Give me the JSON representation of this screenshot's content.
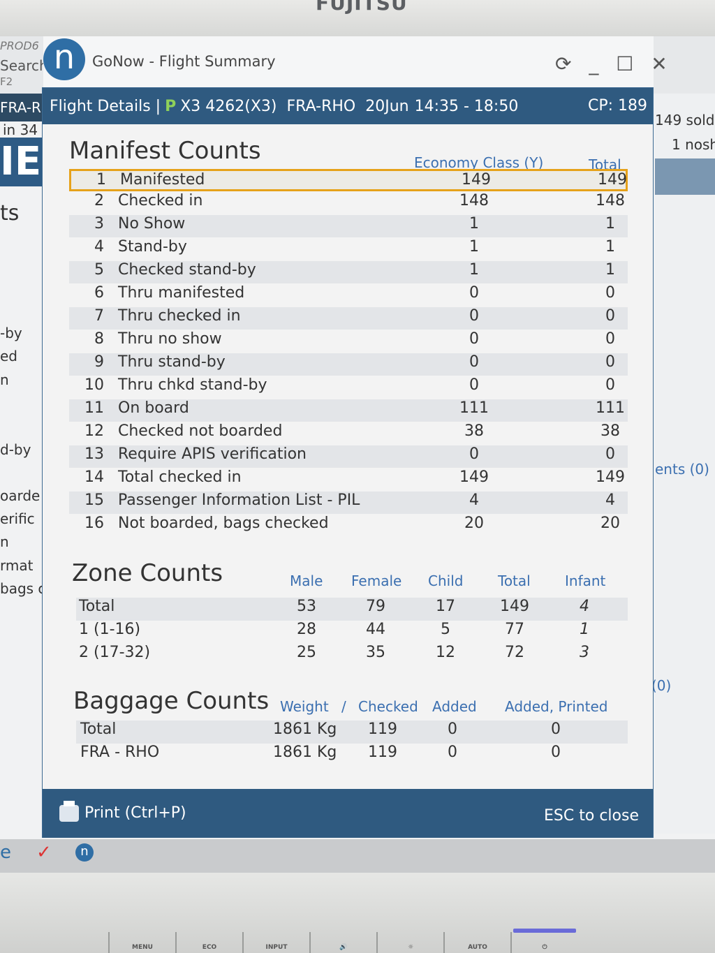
{
  "monitor": {
    "brand": "FUJITSU",
    "osd_buttons": [
      "MENU",
      "ECO",
      "INPUT",
      "🔊",
      "☼",
      "AUTO",
      "⏻"
    ]
  },
  "background_app": {
    "env": "PROD6",
    "search": "Search",
    "f2": "F2",
    "route": "FRA-R",
    "in_count": "in 34",
    "big_letters": "IE",
    "ts": "ts",
    "left_labels": [
      "-by",
      "ed",
      "n",
      "d-by",
      "oarde",
      "erific",
      "n",
      "rmat",
      "bags c"
    ],
    "right_sold": "149 sold",
    "right_nosh": "1 nosh",
    "right_ents": "ents (0)",
    "right_zero": "(0)"
  },
  "window": {
    "logo": "n",
    "title": "GoNow - Flight Summary",
    "controls": "⟳ _ ☐ ✕"
  },
  "dialog": {
    "header": {
      "prefix": "Flight Details |",
      "badge": "P",
      "flight": "X3 4262(X3)",
      "route": "FRA-RHO",
      "date": "20Jun",
      "times": "14:35 - 18:50",
      "cp": "CP: 189"
    },
    "manifest": {
      "title": "Manifest Counts",
      "col_economy": "Economy Class (Y)",
      "col_total": "Total",
      "rows": [
        {
          "num": "1",
          "label": "Manifested",
          "economy": "149",
          "total": "149"
        },
        {
          "num": "2",
          "label": "Checked in",
          "economy": "148",
          "total": "148"
        },
        {
          "num": "3",
          "label": "No Show",
          "economy": "1",
          "total": "1"
        },
        {
          "num": "4",
          "label": "Stand-by",
          "economy": "1",
          "total": "1"
        },
        {
          "num": "5",
          "label": "Checked stand-by",
          "economy": "1",
          "total": "1"
        },
        {
          "num": "6",
          "label": "Thru manifested",
          "economy": "0",
          "total": "0"
        },
        {
          "num": "7",
          "label": "Thru checked in",
          "economy": "0",
          "total": "0"
        },
        {
          "num": "8",
          "label": "Thru no show",
          "economy": "0",
          "total": "0"
        },
        {
          "num": "9",
          "label": "Thru stand-by",
          "economy": "0",
          "total": "0"
        },
        {
          "num": "10",
          "label": "Thru chkd stand-by",
          "economy": "0",
          "total": "0"
        },
        {
          "num": "11",
          "label": "On board",
          "economy": "111",
          "total": "111"
        },
        {
          "num": "12",
          "label": "Checked not boarded",
          "economy": "38",
          "total": "38"
        },
        {
          "num": "13",
          "label": "Require APIS verification",
          "economy": "0",
          "total": "0"
        },
        {
          "num": "14",
          "label": "Total checked in",
          "economy": "149",
          "total": "149"
        },
        {
          "num": "15",
          "label": "Passenger Information List - PIL",
          "economy": "4",
          "total": "4"
        },
        {
          "num": "16",
          "label": "Not boarded, bags checked",
          "economy": "20",
          "total": "20"
        }
      ]
    },
    "zones": {
      "title": "Zone Counts",
      "headers": [
        "Male",
        "Female",
        "Child",
        "Total",
        "Infant"
      ],
      "rows": [
        {
          "label": "Total",
          "male": "53",
          "female": "79",
          "child": "17",
          "total": "149",
          "infant": "4"
        },
        {
          "label": "1 (1-16)",
          "male": "28",
          "female": "44",
          "child": "5",
          "total": "77",
          "infant": "1"
        },
        {
          "label": "2 (17-32)",
          "male": "25",
          "female": "35",
          "child": "12",
          "total": "72",
          "infant": "3"
        }
      ]
    },
    "baggage": {
      "title": "Baggage Counts",
      "headers": {
        "weight": "Weight",
        "sep": "/",
        "checked": "Checked",
        "added": "Added",
        "added_printed": "Added, Printed"
      },
      "rows": [
        {
          "label": "Total",
          "weight": "1861 Kg",
          "checked": "119",
          "added": "0",
          "added_printed": "0"
        },
        {
          "label": "FRA - RHO",
          "weight": "1861 Kg",
          "checked": "119",
          "added": "0",
          "added_printed": "0"
        }
      ]
    },
    "footer": {
      "print": "Print (Ctrl+P)",
      "close": "ESC to close"
    }
  },
  "taskbar": {
    "icons": [
      "e",
      "✓",
      "n"
    ]
  }
}
